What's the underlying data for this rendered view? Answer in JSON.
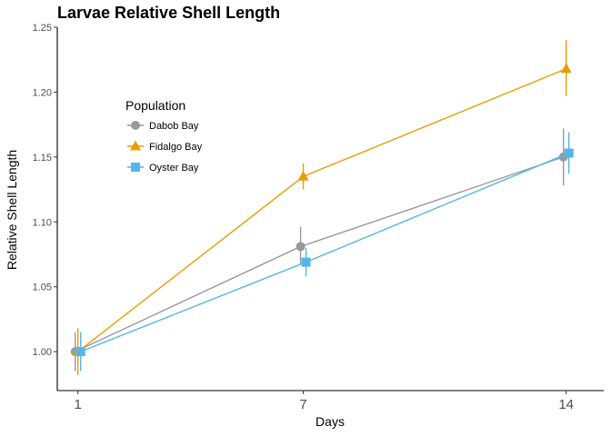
{
  "chart_data": {
    "type": "line",
    "title": "Larvae Relative Shell Length",
    "xlabel": "Days",
    "ylabel": "Relative Shell Length",
    "x": [
      1,
      7,
      14
    ],
    "x_tick_labels": [
      "1",
      "7",
      "14"
    ],
    "ylim": [
      0.97,
      1.25
    ],
    "y_ticks": [
      1.0,
      1.05,
      1.1,
      1.15,
      1.2,
      1.25
    ],
    "y_tick_labels": [
      "1.00",
      "1.05",
      "1.10",
      "1.15",
      "1.20",
      "1.25"
    ],
    "grid": false,
    "legend": {
      "title": "Population",
      "position": "top-left"
    },
    "series": [
      {
        "name": "Dabob Bay",
        "color": "#999999",
        "marker": "circle",
        "values": [
          1.0,
          1.081,
          1.15
        ],
        "err_low": [
          0.985,
          1.067,
          1.128
        ],
        "err_high": [
          1.015,
          1.096,
          1.172
        ]
      },
      {
        "name": "Fidalgo Bay",
        "color": "#E69F00",
        "marker": "triangle",
        "values": [
          1.0,
          1.135,
          1.218
        ],
        "err_low": [
          0.982,
          1.125,
          1.197
        ],
        "err_high": [
          1.018,
          1.145,
          1.24
        ]
      },
      {
        "name": "Oyster Bay",
        "color": "#56B4E9",
        "marker": "square",
        "values": [
          1.0,
          1.069,
          1.153
        ],
        "err_low": [
          0.985,
          1.058,
          1.137
        ],
        "err_high": [
          1.015,
          1.08,
          1.169
        ]
      }
    ]
  }
}
